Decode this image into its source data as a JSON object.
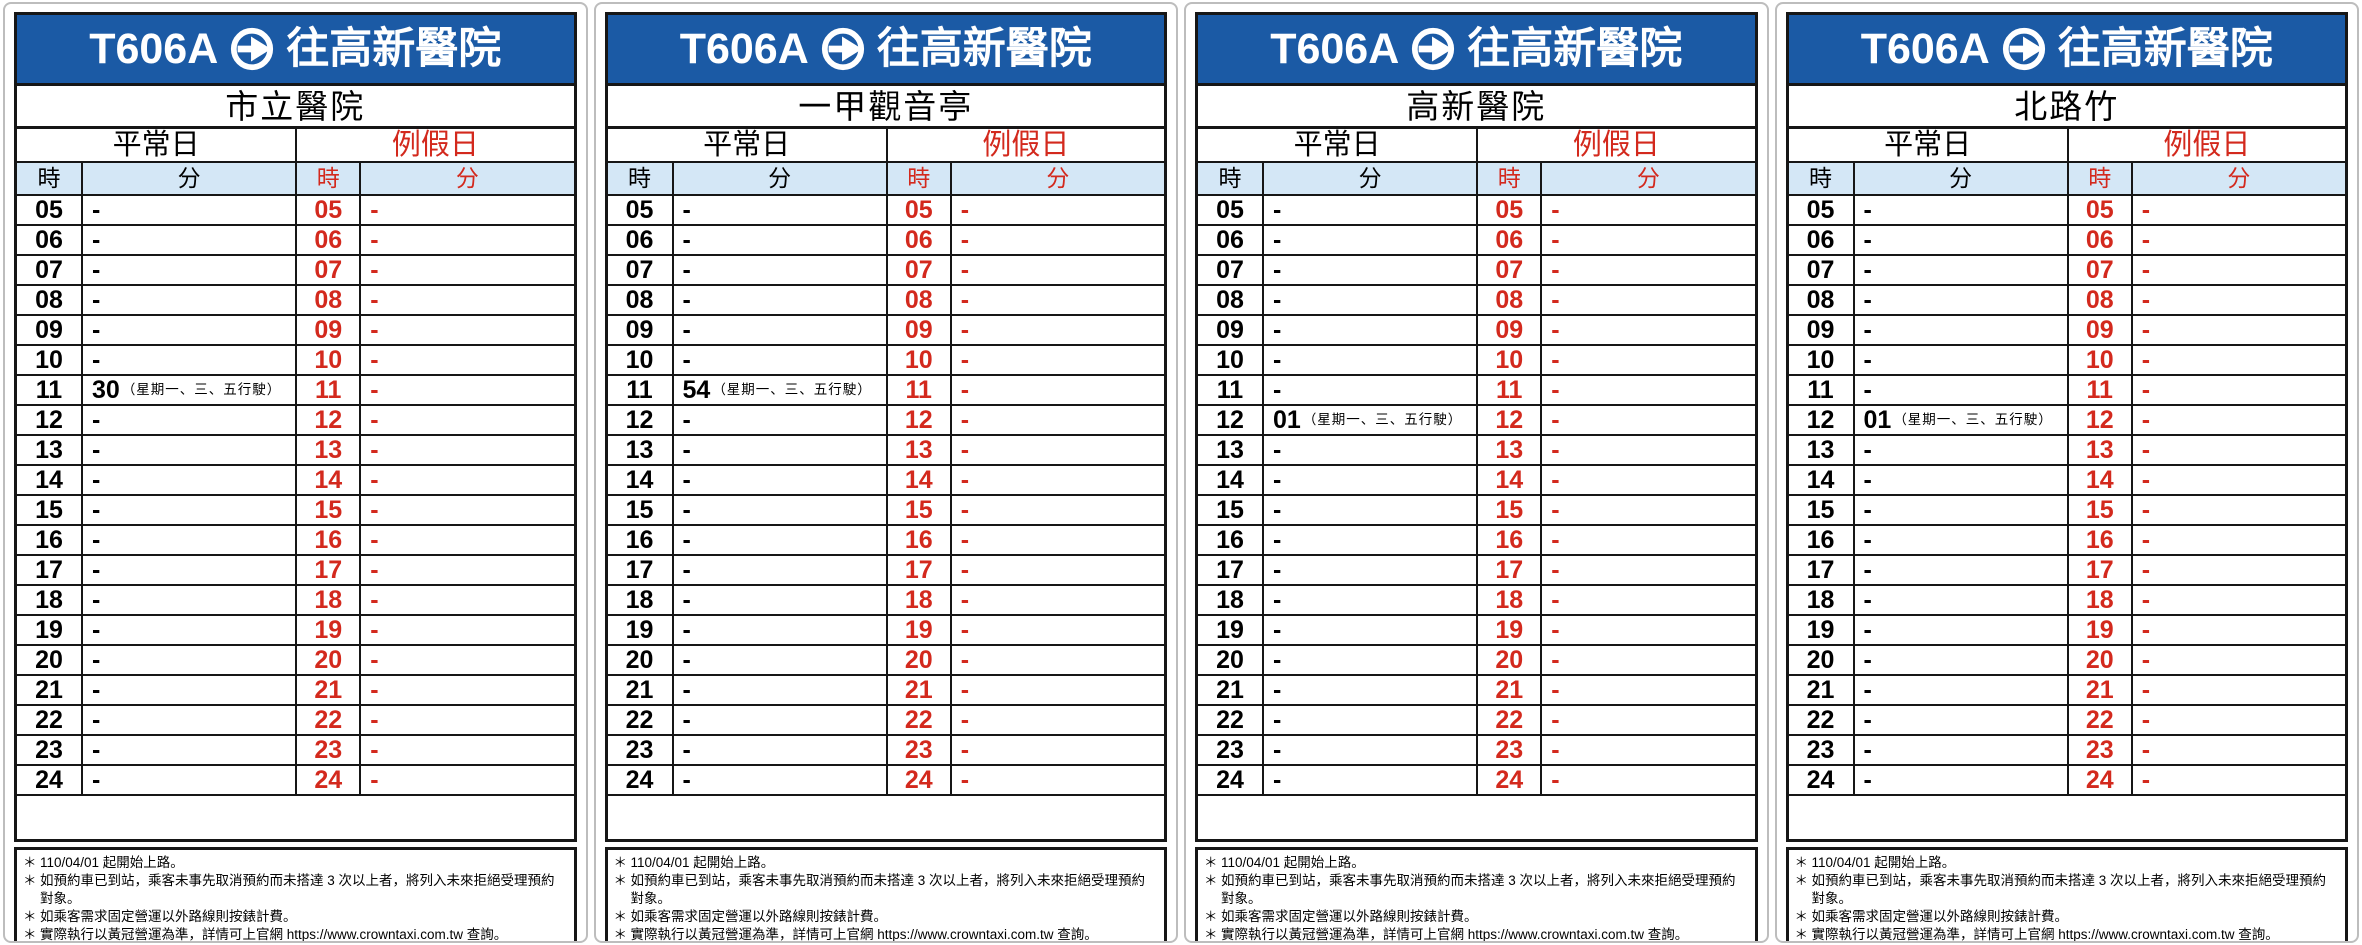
{
  "route": {
    "code": "T606A",
    "arrow_icon": "arrow-right-in-circle",
    "destination": "往高新醫院"
  },
  "labels": {
    "weekday": "平常日",
    "holiday": "例假日",
    "hour": "時",
    "minute": "分"
  },
  "colors": {
    "header_blue": "#1b5aa5",
    "holiday_red": "#d3291d",
    "subhead_bg": "#d4e7f6",
    "table_border": "#161616"
  },
  "note_bullet": "＊",
  "notes": [
    "110/04/01 起開始上路。",
    "如預約車已到站，乘客未事先取消預約而未搭達 3 次以上者，將列入未來拒絕受理預約對象。",
    "如乘客需求固定營運以外路線則按錶計費。",
    "實際執行以黃冠營運為準，詳情可上官網 https://www.crowntaxi.com.tw 查詢。"
  ],
  "panels": [
    {
      "station": "市立醫院",
      "rows": [
        {
          "h": "05",
          "wm": "-",
          "wn": "",
          "hh": "05",
          "hm": "-"
        },
        {
          "h": "06",
          "wm": "-",
          "wn": "",
          "hh": "06",
          "hm": "-"
        },
        {
          "h": "07",
          "wm": "-",
          "wn": "",
          "hh": "07",
          "hm": "-"
        },
        {
          "h": "08",
          "wm": "-",
          "wn": "",
          "hh": "08",
          "hm": "-"
        },
        {
          "h": "09",
          "wm": "-",
          "wn": "",
          "hh": "09",
          "hm": "-"
        },
        {
          "h": "10",
          "wm": "-",
          "wn": "",
          "hh": "10",
          "hm": "-"
        },
        {
          "h": "11",
          "wm": "30",
          "wn": "（星期一、三、五行駛）",
          "hh": "11",
          "hm": "-"
        },
        {
          "h": "12",
          "wm": "-",
          "wn": "",
          "hh": "12",
          "hm": "-"
        },
        {
          "h": "13",
          "wm": "-",
          "wn": "",
          "hh": "13",
          "hm": "-"
        },
        {
          "h": "14",
          "wm": "-",
          "wn": "",
          "hh": "14",
          "hm": "-"
        },
        {
          "h": "15",
          "wm": "-",
          "wn": "",
          "hh": "15",
          "hm": "-"
        },
        {
          "h": "16",
          "wm": "-",
          "wn": "",
          "hh": "16",
          "hm": "-"
        },
        {
          "h": "17",
          "wm": "-",
          "wn": "",
          "hh": "17",
          "hm": "-"
        },
        {
          "h": "18",
          "wm": "-",
          "wn": "",
          "hh": "18",
          "hm": "-"
        },
        {
          "h": "19",
          "wm": "-",
          "wn": "",
          "hh": "19",
          "hm": "-"
        },
        {
          "h": "20",
          "wm": "-",
          "wn": "",
          "hh": "20",
          "hm": "-"
        },
        {
          "h": "21",
          "wm": "-",
          "wn": "",
          "hh": "21",
          "hm": "-"
        },
        {
          "h": "22",
          "wm": "-",
          "wn": "",
          "hh": "22",
          "hm": "-"
        },
        {
          "h": "23",
          "wm": "-",
          "wn": "",
          "hh": "23",
          "hm": "-"
        },
        {
          "h": "24",
          "wm": "-",
          "wn": "",
          "hh": "24",
          "hm": "-"
        }
      ]
    },
    {
      "station": "一甲觀音亭",
      "rows": [
        {
          "h": "05",
          "wm": "-",
          "wn": "",
          "hh": "05",
          "hm": "-"
        },
        {
          "h": "06",
          "wm": "-",
          "wn": "",
          "hh": "06",
          "hm": "-"
        },
        {
          "h": "07",
          "wm": "-",
          "wn": "",
          "hh": "07",
          "hm": "-"
        },
        {
          "h": "08",
          "wm": "-",
          "wn": "",
          "hh": "08",
          "hm": "-"
        },
        {
          "h": "09",
          "wm": "-",
          "wn": "",
          "hh": "09",
          "hm": "-"
        },
        {
          "h": "10",
          "wm": "-",
          "wn": "",
          "hh": "10",
          "hm": "-"
        },
        {
          "h": "11",
          "wm": "54",
          "wn": "（星期一、三、五行駛）",
          "hh": "11",
          "hm": "-"
        },
        {
          "h": "12",
          "wm": "-",
          "wn": "",
          "hh": "12",
          "hm": "-"
        },
        {
          "h": "13",
          "wm": "-",
          "wn": "",
          "hh": "13",
          "hm": "-"
        },
        {
          "h": "14",
          "wm": "-",
          "wn": "",
          "hh": "14",
          "hm": "-"
        },
        {
          "h": "15",
          "wm": "-",
          "wn": "",
          "hh": "15",
          "hm": "-"
        },
        {
          "h": "16",
          "wm": "-",
          "wn": "",
          "hh": "16",
          "hm": "-"
        },
        {
          "h": "17",
          "wm": "-",
          "wn": "",
          "hh": "17",
          "hm": "-"
        },
        {
          "h": "18",
          "wm": "-",
          "wn": "",
          "hh": "18",
          "hm": "-"
        },
        {
          "h": "19",
          "wm": "-",
          "wn": "",
          "hh": "19",
          "hm": "-"
        },
        {
          "h": "20",
          "wm": "-",
          "wn": "",
          "hh": "20",
          "hm": "-"
        },
        {
          "h": "21",
          "wm": "-",
          "wn": "",
          "hh": "21",
          "hm": "-"
        },
        {
          "h": "22",
          "wm": "-",
          "wn": "",
          "hh": "22",
          "hm": "-"
        },
        {
          "h": "23",
          "wm": "-",
          "wn": "",
          "hh": "23",
          "hm": "-"
        },
        {
          "h": "24",
          "wm": "-",
          "wn": "",
          "hh": "24",
          "hm": "-"
        }
      ]
    },
    {
      "station": "高新醫院",
      "rows": [
        {
          "h": "05",
          "wm": "-",
          "wn": "",
          "hh": "05",
          "hm": "-"
        },
        {
          "h": "06",
          "wm": "-",
          "wn": "",
          "hh": "06",
          "hm": "-"
        },
        {
          "h": "07",
          "wm": "-",
          "wn": "",
          "hh": "07",
          "hm": "-"
        },
        {
          "h": "08",
          "wm": "-",
          "wn": "",
          "hh": "08",
          "hm": "-"
        },
        {
          "h": "09",
          "wm": "-",
          "wn": "",
          "hh": "09",
          "hm": "-"
        },
        {
          "h": "10",
          "wm": "-",
          "wn": "",
          "hh": "10",
          "hm": "-"
        },
        {
          "h": "11",
          "wm": "-",
          "wn": "",
          "hh": "11",
          "hm": "-"
        },
        {
          "h": "12",
          "wm": "01",
          "wn": "（星期一、三、五行駛）",
          "hh": "12",
          "hm": "-"
        },
        {
          "h": "13",
          "wm": "-",
          "wn": "",
          "hh": "13",
          "hm": "-"
        },
        {
          "h": "14",
          "wm": "-",
          "wn": "",
          "hh": "14",
          "hm": "-"
        },
        {
          "h": "15",
          "wm": "-",
          "wn": "",
          "hh": "15",
          "hm": "-"
        },
        {
          "h": "16",
          "wm": "-",
          "wn": "",
          "hh": "16",
          "hm": "-"
        },
        {
          "h": "17",
          "wm": "-",
          "wn": "",
          "hh": "17",
          "hm": "-"
        },
        {
          "h": "18",
          "wm": "-",
          "wn": "",
          "hh": "18",
          "hm": "-"
        },
        {
          "h": "19",
          "wm": "-",
          "wn": "",
          "hh": "19",
          "hm": "-"
        },
        {
          "h": "20",
          "wm": "-",
          "wn": "",
          "hh": "20",
          "hm": "-"
        },
        {
          "h": "21",
          "wm": "-",
          "wn": "",
          "hh": "21",
          "hm": "-"
        },
        {
          "h": "22",
          "wm": "-",
          "wn": "",
          "hh": "22",
          "hm": "-"
        },
        {
          "h": "23",
          "wm": "-",
          "wn": "",
          "hh": "23",
          "hm": "-"
        },
        {
          "h": "24",
          "wm": "-",
          "wn": "",
          "hh": "24",
          "hm": "-"
        }
      ]
    },
    {
      "station": "北路竹",
      "rows": [
        {
          "h": "05",
          "wm": "-",
          "wn": "",
          "hh": "05",
          "hm": "-"
        },
        {
          "h": "06",
          "wm": "-",
          "wn": "",
          "hh": "06",
          "hm": "-"
        },
        {
          "h": "07",
          "wm": "-",
          "wn": "",
          "hh": "07",
          "hm": "-"
        },
        {
          "h": "08",
          "wm": "-",
          "wn": "",
          "hh": "08",
          "hm": "-"
        },
        {
          "h": "09",
          "wm": "-",
          "wn": "",
          "hh": "09",
          "hm": "-"
        },
        {
          "h": "10",
          "wm": "-",
          "wn": "",
          "hh": "10",
          "hm": "-"
        },
        {
          "h": "11",
          "wm": "-",
          "wn": "",
          "hh": "11",
          "hm": "-"
        },
        {
          "h": "12",
          "wm": "01",
          "wn": "（星期一、三、五行駛）",
          "hh": "12",
          "hm": "-"
        },
        {
          "h": "13",
          "wm": "-",
          "wn": "",
          "hh": "13",
          "hm": "-"
        },
        {
          "h": "14",
          "wm": "-",
          "wn": "",
          "hh": "14",
          "hm": "-"
        },
        {
          "h": "15",
          "wm": "-",
          "wn": "",
          "hh": "15",
          "hm": "-"
        },
        {
          "h": "16",
          "wm": "-",
          "wn": "",
          "hh": "16",
          "hm": "-"
        },
        {
          "h": "17",
          "wm": "-",
          "wn": "",
          "hh": "17",
          "hm": "-"
        },
        {
          "h": "18",
          "wm": "-",
          "wn": "",
          "hh": "18",
          "hm": "-"
        },
        {
          "h": "19",
          "wm": "-",
          "wn": "",
          "hh": "19",
          "hm": "-"
        },
        {
          "h": "20",
          "wm": "-",
          "wn": "",
          "hh": "20",
          "hm": "-"
        },
        {
          "h": "21",
          "wm": "-",
          "wn": "",
          "hh": "21",
          "hm": "-"
        },
        {
          "h": "22",
          "wm": "-",
          "wn": "",
          "hh": "22",
          "hm": "-"
        },
        {
          "h": "23",
          "wm": "-",
          "wn": "",
          "hh": "23",
          "hm": "-"
        },
        {
          "h": "24",
          "wm": "-",
          "wn": "",
          "hh": "24",
          "hm": "-"
        }
      ]
    }
  ]
}
